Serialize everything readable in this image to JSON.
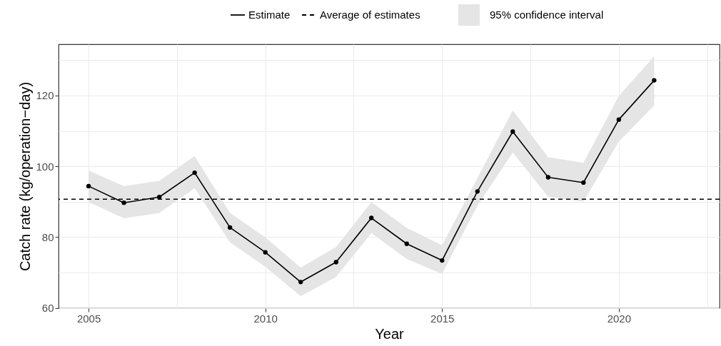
{
  "chart_data": {
    "type": "line",
    "xlabel": "Year",
    "ylabel": "Catch rate (kg/operation−day)",
    "x": [
      2005,
      2006,
      2007,
      2008,
      2009,
      2010,
      2011,
      2012,
      2013,
      2014,
      2015,
      2016,
      2017,
      2018,
      2019,
      2020,
      2021
    ],
    "series": [
      {
        "name": "Estimate",
        "color": "#000000",
        "marker": "circle",
        "line_style": "solid",
        "values": [
          94.4,
          89.7,
          91.3,
          98.2,
          82.7,
          75.7,
          67.3,
          72.9,
          85.4,
          78.1,
          73.4,
          92.9,
          109.8,
          96.9,
          95.4,
          113.2,
          124.3
        ],
        "lower": [
          89.9,
          85.3,
          86.8,
          93.8,
          78.5,
          71.6,
          63.3,
          68.7,
          81.1,
          73.8,
          69.6,
          88.9,
          103.9,
          91.4,
          90.0,
          107.0,
          117.2
        ],
        "upper": [
          98.8,
          94.4,
          95.9,
          102.9,
          86.8,
          79.9,
          71.4,
          77.2,
          89.9,
          82.6,
          77.7,
          96.7,
          115.8,
          102.6,
          101.0,
          119.9,
          131.1
        ]
      }
    ],
    "ref_lines": [
      {
        "axis": "y",
        "value": 90.7,
        "label": "Average of estimates",
        "line_style": "dashed",
        "color": "#000000"
      }
    ],
    "xlim": [
      2004.15,
      2022.85
    ],
    "xticks": [
      {
        "value": 2005,
        "label": "2005"
      },
      {
        "value": 2007.5,
        "label": null
      },
      {
        "value": 2010,
        "label": "2010"
      },
      {
        "value": 2012.5,
        "label": null
      },
      {
        "value": 2015,
        "label": "2015"
      },
      {
        "value": 2017.5,
        "label": null
      },
      {
        "value": 2020,
        "label": "2020"
      },
      {
        "value": 2022.5,
        "label": null
      }
    ],
    "ylim": [
      59.9,
      134.5
    ],
    "yticks": [
      60,
      {
        "value": 70,
        "label": null
      },
      80,
      {
        "value": 90,
        "label": null
      },
      100,
      {
        "value": 110,
        "label": null
      },
      120,
      {
        "value": 130,
        "label": null
      }
    ],
    "annotations": [
      "95% confidence interval"
    ],
    "grid": true,
    "legend": "top"
  }
}
